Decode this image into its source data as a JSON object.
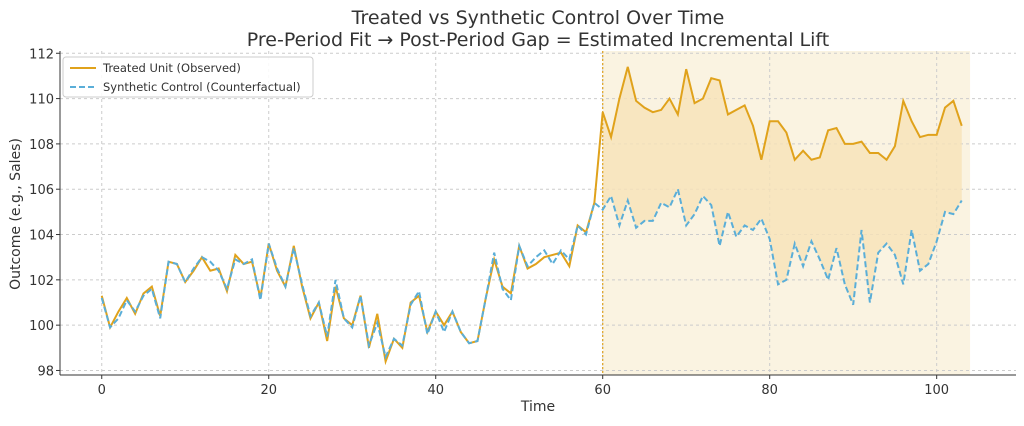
{
  "chart_data": {
    "type": "line",
    "title": "Treated vs Synthetic Control Over Time",
    "subtitle": "Pre-Period Fit → Post-Period Gap = Estimated Incremental Lift",
    "xlabel": "Time",
    "ylabel": "Outcome (e.g., Sales)",
    "xlim": [
      -5,
      109.5
    ],
    "ylim": [
      97.8,
      112.1
    ],
    "xticks": [
      0,
      20,
      40,
      60,
      80,
      100
    ],
    "yticks": [
      98,
      100,
      102,
      104,
      106,
      108,
      110,
      112
    ],
    "grid": true,
    "legend_placement": "top-left",
    "treatment_start": 60,
    "post_period_shade": [
      60,
      104
    ],
    "colors": {
      "treated": "#e0a21b",
      "synthetic": "#5aaed8",
      "shade": "#faf3e1",
      "gap_fill": "#f7e2b8",
      "vline": "#e0a21b"
    },
    "series": [
      {
        "name": "Treated Unit (Observed)",
        "style": "solid",
        "values": [
          101.3,
          99.9,
          100.6,
          101.2,
          100.5,
          101.4,
          101.7,
          100.4,
          102.8,
          102.7,
          101.9,
          102.4,
          103.0,
          102.4,
          102.5,
          101.5,
          103.1,
          102.7,
          102.8,
          101.2,
          103.6,
          102.4,
          101.7,
          103.5,
          101.7,
          100.3,
          101.0,
          99.3,
          101.7,
          100.3,
          100.0,
          101.3,
          99.0,
          100.5,
          98.4,
          99.4,
          99.0,
          101.0,
          101.3,
          99.7,
          100.6,
          100.0,
          100.6,
          99.7,
          99.2,
          99.3,
          101.2,
          102.9,
          101.7,
          101.4,
          103.5,
          102.5,
          102.7,
          103.0,
          103.1,
          103.2,
          102.6,
          104.4,
          104.1,
          105.4,
          109.4,
          108.3,
          110.0,
          111.4,
          109.9,
          109.6,
          109.4,
          109.5,
          110.0,
          109.3,
          111.3,
          109.8,
          110.0,
          110.9,
          110.8,
          109.3,
          109.5,
          109.7,
          108.8,
          107.3,
          109.0,
          109.0,
          108.5,
          107.3,
          107.7,
          107.3,
          107.4,
          108.6,
          108.7,
          108.0,
          108.0,
          108.1,
          107.6,
          107.6,
          107.3,
          107.9,
          109.9,
          109.0,
          108.3,
          108.4,
          108.4,
          109.6,
          109.9,
          108.8
        ]
      },
      {
        "name": "Synthetic Control (Counterfactual)",
        "style": "dashed",
        "values": [
          101.2,
          99.9,
          100.3,
          101.1,
          100.6,
          101.3,
          101.6,
          100.3,
          102.8,
          102.7,
          101.9,
          102.5,
          103.0,
          102.8,
          102.4,
          101.6,
          102.9,
          102.7,
          102.9,
          101.1,
          103.6,
          102.5,
          101.7,
          103.4,
          101.8,
          100.4,
          101.0,
          99.5,
          102.0,
          100.3,
          99.9,
          101.3,
          99.1,
          100.1,
          98.6,
          99.4,
          99.1,
          100.9,
          101.5,
          99.6,
          100.6,
          99.7,
          100.6,
          99.7,
          99.2,
          99.3,
          101.2,
          103.2,
          101.6,
          101.1,
          103.5,
          102.6,
          103.0,
          103.3,
          102.7,
          103.3,
          102.9,
          104.4,
          104.0,
          105.4,
          105.1,
          105.7,
          104.4,
          105.5,
          104.3,
          104.6,
          104.6,
          105.4,
          105.2,
          106.0,
          104.4,
          104.9,
          105.7,
          105.3,
          103.5,
          105.0,
          103.9,
          104.4,
          104.2,
          104.7,
          103.8,
          101.8,
          102.0,
          103.6,
          102.6,
          103.7,
          102.9,
          102.0,
          103.4,
          101.8,
          100.9,
          104.2,
          101.0,
          103.2,
          103.6,
          103.1,
          101.8,
          104.2,
          102.4,
          102.7,
          103.7,
          105.0,
          104.9,
          105.5
        ]
      }
    ]
  }
}
